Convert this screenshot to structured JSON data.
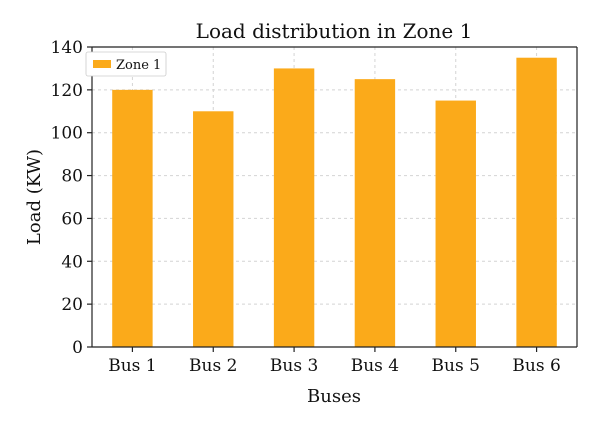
{
  "chart_data": {
    "type": "bar",
    "title": "Load distribution in Zone 1",
    "xlabel": "Buses",
    "ylabel": "Load (KW)",
    "categories": [
      "Bus 1",
      "Bus 2",
      "Bus 3",
      "Bus 4",
      "Bus 5",
      "Bus 6"
    ],
    "series": [
      {
        "name": "Zone 1",
        "values": [
          120,
          110,
          130,
          125,
          115,
          135
        ],
        "color": "#FBAA1A"
      }
    ],
    "ylim": [
      0,
      140
    ],
    "yticks": [
      0,
      20,
      40,
      60,
      80,
      100,
      120,
      140
    ],
    "grid": true,
    "legend_position": "top-left"
  }
}
